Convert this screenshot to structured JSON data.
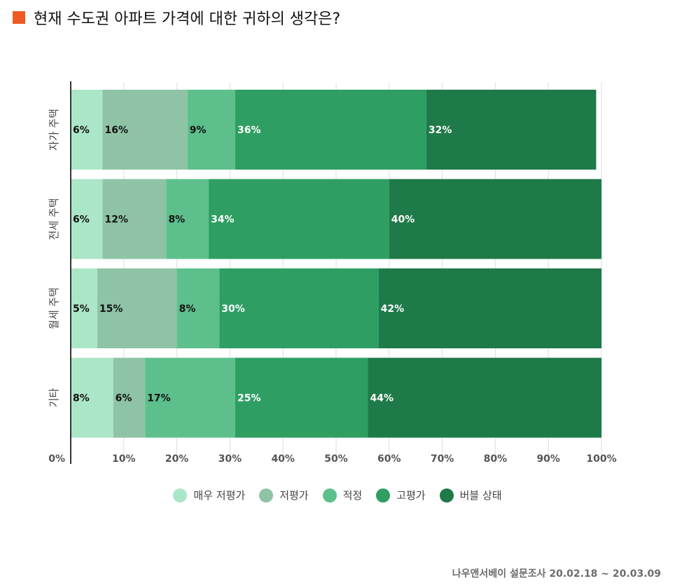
{
  "header": {
    "title": "현재 수도권 아파트 가격에 대한 귀하의 생각은?",
    "accent_color": "#ee5a24"
  },
  "chart_data": {
    "type": "bar",
    "orientation": "horizontal",
    "stacked": true,
    "title": "현재 수도권 아파트 가격에 대한 귀하의 생각은?",
    "xlabel": "",
    "ylabel": "",
    "xlim": [
      0,
      100
    ],
    "x_ticks": [
      "0%",
      "10%",
      "20%",
      "30%",
      "40%",
      "50%",
      "60%",
      "70%",
      "80%",
      "90%",
      "100%"
    ],
    "grid": true,
    "legend_position": "bottom",
    "categories": [
      "자가 주택",
      "전세 주택",
      "월세 주택",
      "기타"
    ],
    "series": [
      {
        "name": "매우 저평가",
        "color": "#ace6c8",
        "values": [
          6,
          6,
          5,
          8
        ],
        "labels": [
          "6%",
          "6%",
          "5%",
          "8%"
        ]
      },
      {
        "name": "저평가",
        "color": "#8fc3a6",
        "values": [
          16,
          12,
          15,
          6
        ],
        "labels": [
          "16%",
          "12%",
          "15%",
          "6%"
        ]
      },
      {
        "name": "적정",
        "color": "#5dc08c",
        "values": [
          9,
          8,
          8,
          17
        ],
        "labels": [
          "9%",
          "8%",
          "8%",
          "17%"
        ]
      },
      {
        "name": "고평가",
        "color": "#2e9e62",
        "values": [
          36,
          34,
          30,
          25
        ],
        "labels": [
          "36%",
          "34%",
          "30%",
          "25%"
        ]
      },
      {
        "name": "버블 상태",
        "color": "#1e7a48",
        "values": [
          32,
          40,
          42,
          44
        ],
        "labels": [
          "32%",
          "40%",
          "42%",
          "44%"
        ]
      }
    ]
  },
  "footer": {
    "source": "나우앤서베이 설문조사 20.02.18 ~ 20.03.09"
  }
}
